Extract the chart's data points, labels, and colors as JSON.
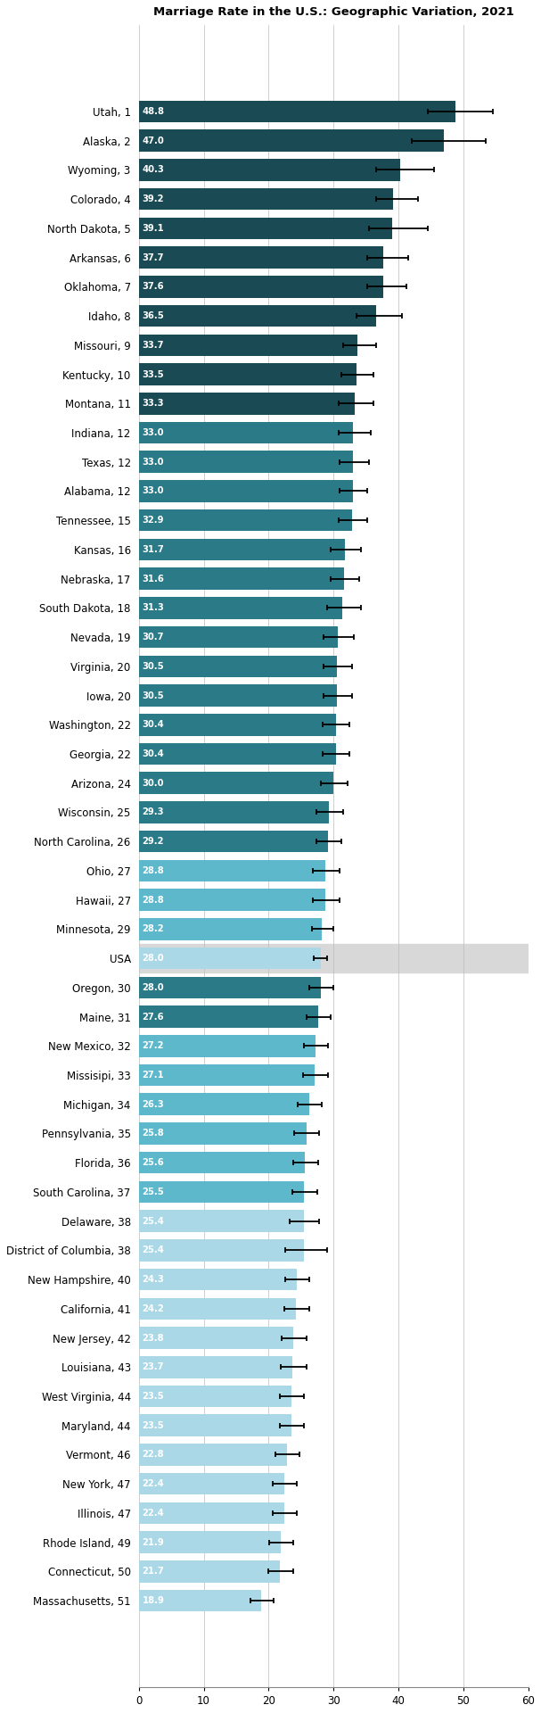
{
  "title": "Marriage Rate in the U.S.: Geographic Variation, 2021",
  "categories": [
    "Utah, 1",
    "Alaska, 2",
    "Wyoming, 3",
    "Colorado, 4",
    "North Dakota, 5",
    "Arkansas, 6",
    "Oklahoma, 7",
    "Idaho, 8",
    "Missouri, 9",
    "Kentucky, 10",
    "Montana, 11",
    "Indiana, 12",
    "Texas, 12",
    "Alabama, 12",
    "Tennessee, 15",
    "Kansas, 16",
    "Nebraska, 17",
    "South Dakota, 18",
    "Nevada, 19",
    "Virginia, 20",
    "Iowa, 20",
    "Washington, 22",
    "Georgia, 22",
    "Arizona, 24",
    "Wisconsin, 25",
    "North Carolina, 26",
    "Ohio, 27",
    "Hawaii, 27",
    "Minnesota, 29",
    "USA",
    "Oregon, 30",
    "Maine, 31",
    "New Mexico, 32",
    "Missisipi, 33",
    "Michigan, 34",
    "Pennsylvania, 35",
    "Florida, 36",
    "South Carolina, 37",
    "Delaware, 38",
    "District of Columbia, 38",
    "New Hampshire, 40",
    "California, 41",
    "New Jersey, 42",
    "Louisiana, 43",
    "West Virginia, 44",
    "Maryland, 44",
    "Vermont, 46",
    "New York, 47",
    "Illinois, 47",
    "Rhode Island, 49",
    "Connecticut, 50",
    "Massachusetts, 51"
  ],
  "values": [
    48.8,
    47.0,
    40.3,
    39.2,
    39.1,
    37.7,
    37.6,
    36.5,
    33.7,
    33.5,
    33.3,
    33.0,
    33.0,
    33.0,
    32.9,
    31.7,
    31.6,
    31.3,
    30.7,
    30.5,
    30.5,
    30.4,
    30.4,
    30.0,
    29.3,
    29.2,
    28.8,
    28.8,
    28.2,
    28.0,
    28.0,
    27.6,
    27.2,
    27.1,
    26.3,
    25.8,
    25.6,
    25.5,
    25.4,
    25.4,
    24.3,
    24.2,
    23.8,
    23.7,
    23.5,
    23.5,
    22.8,
    22.4,
    22.4,
    21.9,
    21.7,
    18.9
  ],
  "ci_lower": [
    44.5,
    42.0,
    36.5,
    36.5,
    35.5,
    35.2,
    35.2,
    33.5,
    31.5,
    31.2,
    30.8,
    30.8,
    31.0,
    31.0,
    30.8,
    29.5,
    29.5,
    29.0,
    28.5,
    28.5,
    28.5,
    28.3,
    28.3,
    28.0,
    27.3,
    27.3,
    26.8,
    26.8,
    26.7,
    27.0,
    26.3,
    25.8,
    25.5,
    25.3,
    24.5,
    24.0,
    23.8,
    23.7,
    23.2,
    22.5,
    22.5,
    22.4,
    22.0,
    21.9,
    21.7,
    21.7,
    21.0,
    20.6,
    20.6,
    20.1,
    19.9,
    17.2
  ],
  "ci_upper": [
    54.5,
    53.5,
    45.5,
    43.0,
    44.5,
    41.5,
    41.2,
    40.5,
    36.5,
    36.2,
    36.2,
    35.8,
    35.5,
    35.2,
    35.2,
    34.2,
    34.0,
    34.2,
    33.2,
    32.8,
    32.8,
    32.5,
    32.5,
    32.2,
    31.5,
    31.2,
    31.0,
    31.0,
    30.0,
    29.0,
    30.0,
    29.5,
    29.2,
    29.2,
    28.2,
    27.8,
    27.6,
    27.5,
    27.8,
    29.0,
    26.2,
    26.2,
    25.8,
    25.8,
    25.5,
    25.5,
    24.8,
    24.4,
    24.4,
    23.8,
    23.8,
    20.8
  ],
  "bar_colors": [
    "#1a4a54",
    "#1a4a54",
    "#1a4a54",
    "#1a4a54",
    "#1a4a54",
    "#1a4a54",
    "#1a4a54",
    "#1a4a54",
    "#1a4a54",
    "#1a4a54",
    "#1a4a54",
    "#2b7a87",
    "#2b7a87",
    "#2b7a87",
    "#2b7a87",
    "#2b7a87",
    "#2b7a87",
    "#2b7a87",
    "#2b7a87",
    "#2b7a87",
    "#2b7a87",
    "#2b7a87",
    "#2b7a87",
    "#2b7a87",
    "#2b7a87",
    "#2b7a87",
    "#5db8cc",
    "#5db8cc",
    "#5db8cc",
    "#aad8e6",
    "#2b7a87",
    "#2b7a87",
    "#5db8cc",
    "#5db8cc",
    "#5db8cc",
    "#5db8cc",
    "#5db8cc",
    "#5db8cc",
    "#aad8e6",
    "#aad8e6",
    "#aad8e6",
    "#aad8e6",
    "#aad8e6",
    "#aad8e6",
    "#aad8e6",
    "#aad8e6",
    "#aad8e6",
    "#aad8e6",
    "#aad8e6",
    "#aad8e6",
    "#aad8e6",
    "#aad8e6"
  ],
  "xlim": [
    0,
    60
  ],
  "xticks": [
    0,
    10,
    20,
    30,
    40,
    50,
    60
  ],
  "bar_height": 0.75,
  "fontsize_labels": 8.5,
  "fontsize_values": 7.2,
  "fontsize_title": 9.5
}
